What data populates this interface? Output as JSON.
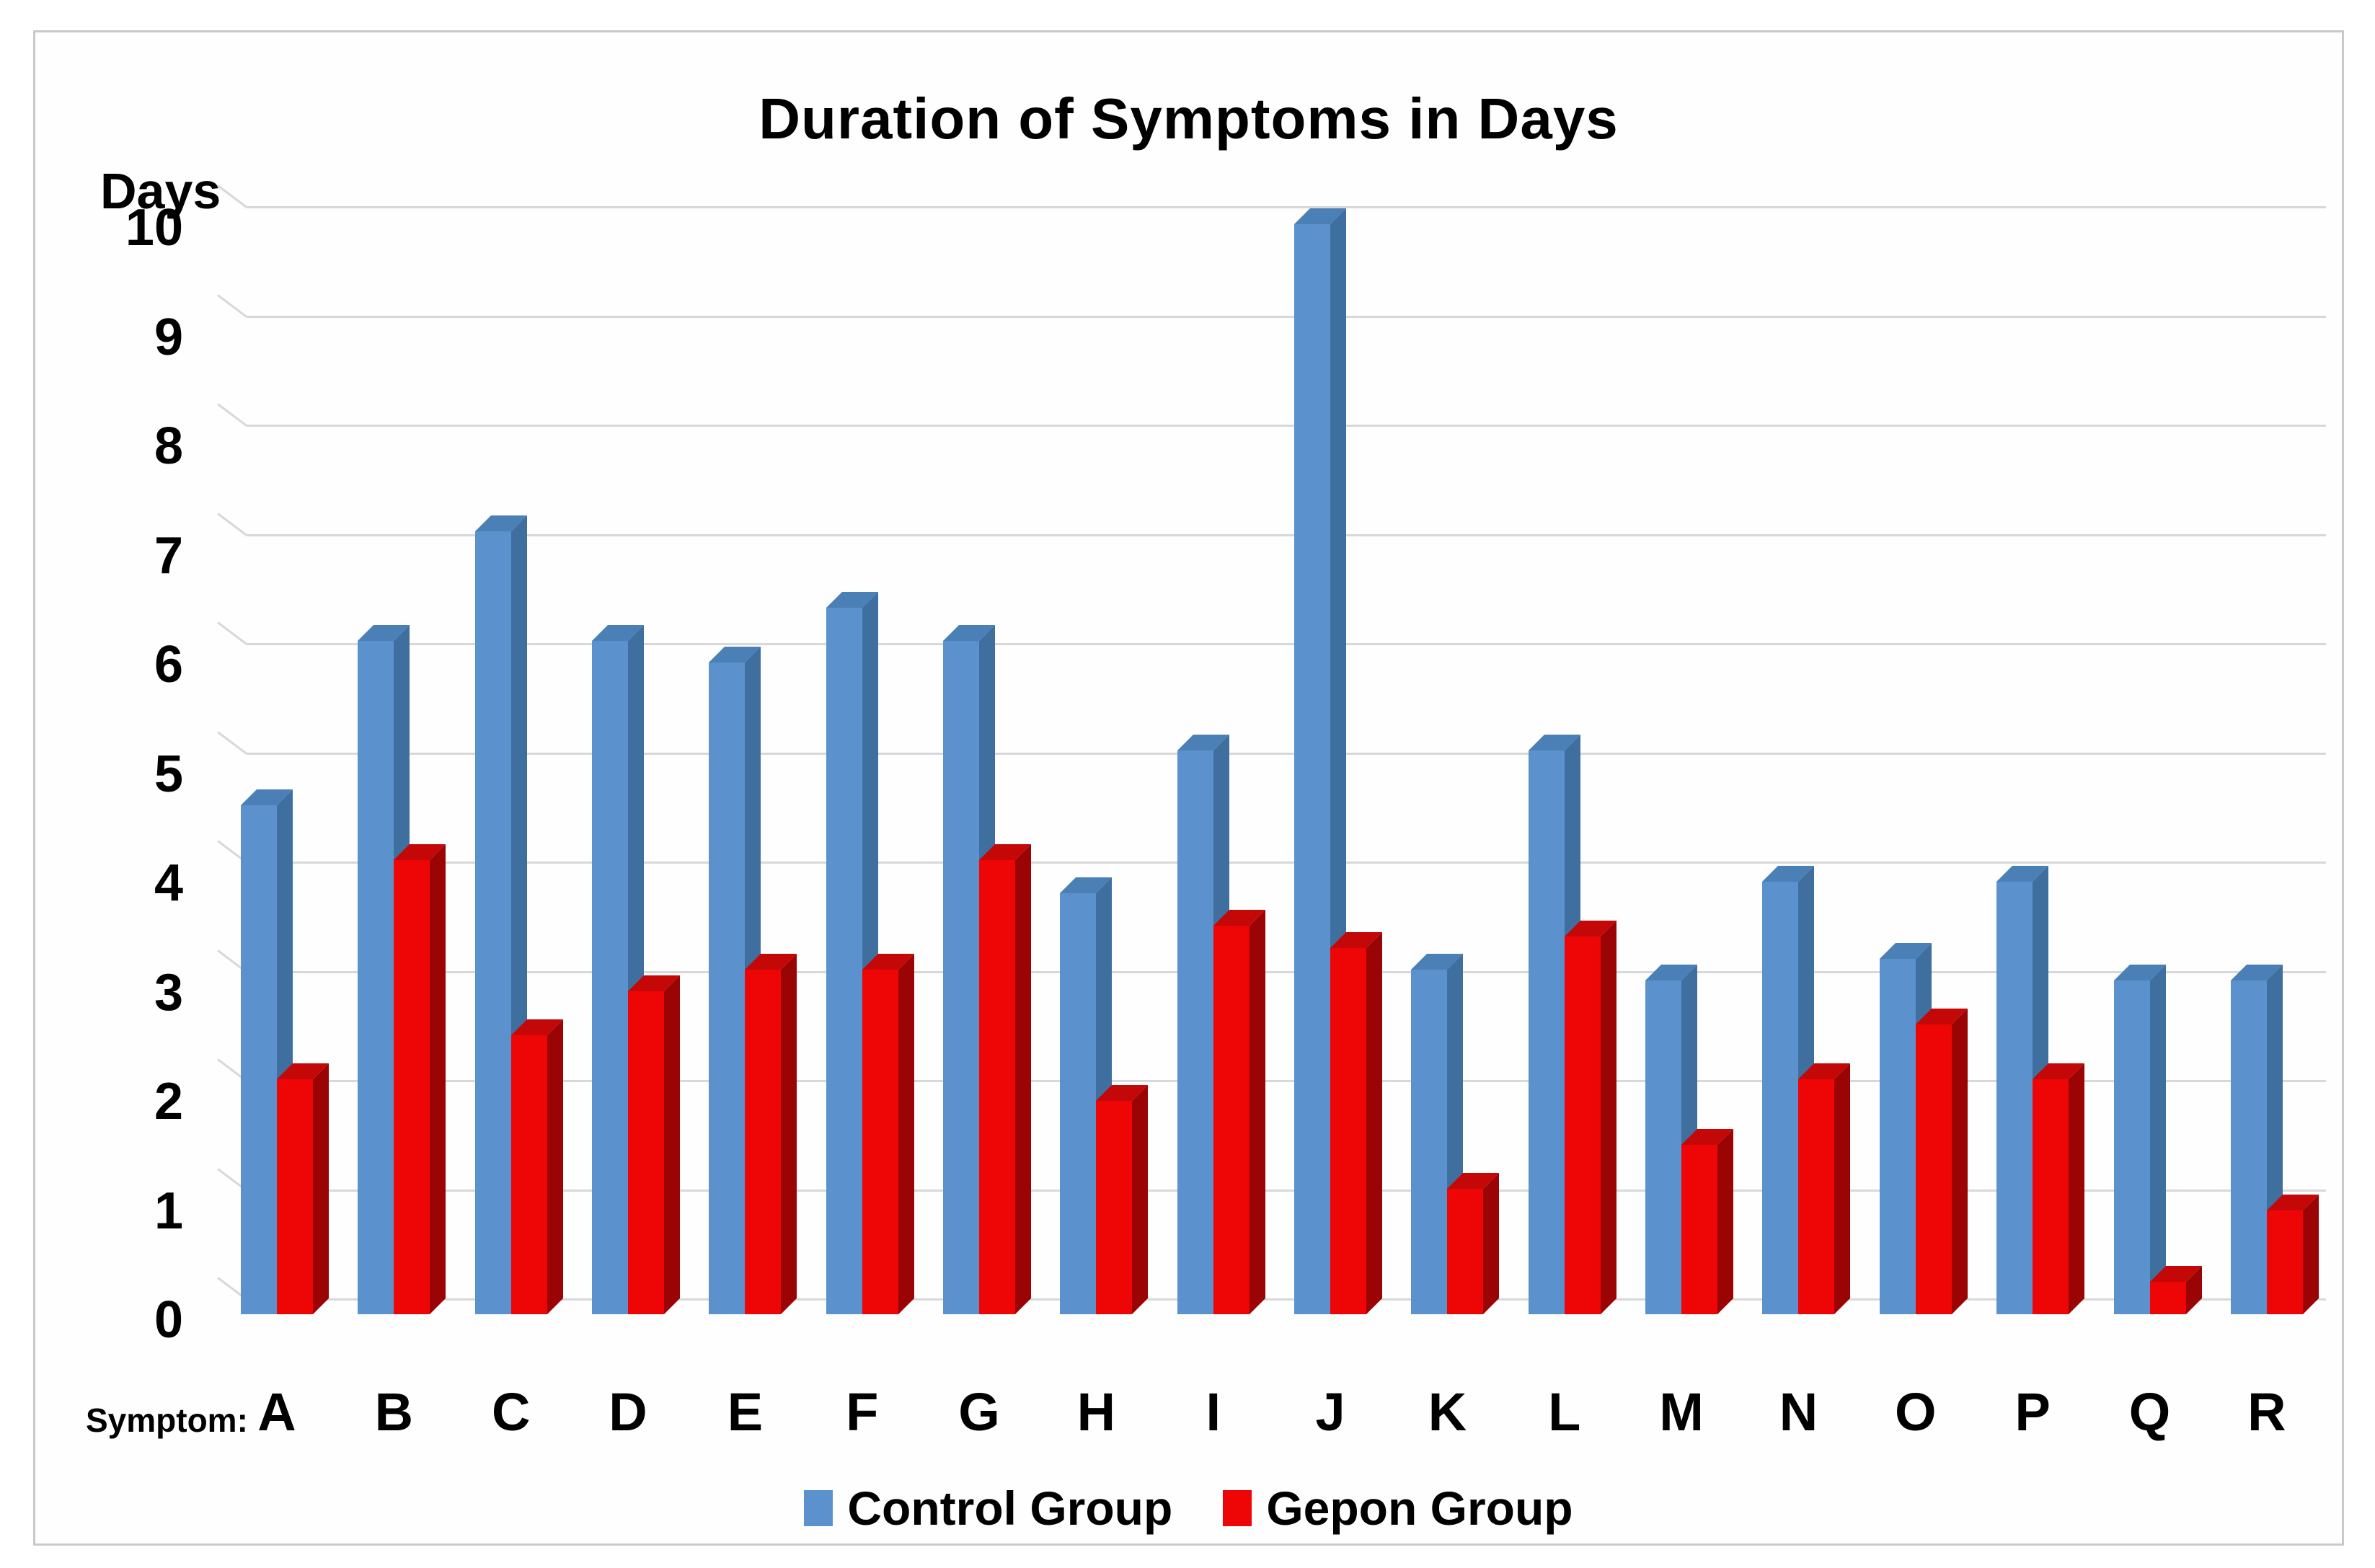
{
  "title": "Duration of Symptoms in Days",
  "y_axis": {
    "title": "Days",
    "ticks": [
      "0",
      "1",
      "2",
      "3",
      "4",
      "5",
      "6",
      "7",
      "8",
      "9",
      "10"
    ],
    "min": 0,
    "max": 10
  },
  "x_axis": {
    "title": "Symptom:",
    "categories": [
      "A",
      "B",
      "C",
      "D",
      "E",
      "F",
      "G",
      "H",
      "I",
      "J",
      "K",
      "L",
      "M",
      "N",
      "O",
      "P",
      "Q",
      "R"
    ]
  },
  "legend": {
    "items": [
      {
        "label": "Control Group",
        "color": "#5b92ce"
      },
      {
        "label": "Gepon Group",
        "color": "#ee0606"
      }
    ],
    "position": "bottom"
  },
  "colors": {
    "control_front": "#5b92ce",
    "control_top": "#4a80b6",
    "control_side": "#3f6f9f",
    "gepon_front": "#ee0606",
    "gepon_top": "#c40808",
    "gepon_side": "#9b0404",
    "gridline": "#d8d8d8",
    "frame_border": "#c9c9c9",
    "text": "#000000"
  },
  "chart_data": {
    "type": "bar",
    "style": "3d-clustered-column",
    "title": "Duration of Symptoms in Days",
    "xlabel": "Symptom",
    "ylabel": "Days",
    "ylim": [
      0,
      10
    ],
    "grid": true,
    "legend_position": "bottom",
    "categories": [
      "A",
      "B",
      "C",
      "D",
      "E",
      "F",
      "G",
      "H",
      "I",
      "J",
      "K",
      "L",
      "M",
      "N",
      "O",
      "P",
      "Q",
      "R"
    ],
    "series": [
      {
        "name": "Control Group",
        "color": "#5b92ce",
        "values": [
          4.5,
          6,
          7,
          6,
          5.8,
          6.3,
          6,
          3.7,
          5,
          9.8,
          3,
          5,
          2.9,
          3.8,
          3.1,
          3.8,
          2.9,
          2.9
        ]
      },
      {
        "name": "Gepon Group",
        "color": "#ee0606",
        "values": [
          2,
          4,
          2.4,
          2.8,
          3,
          3,
          4,
          1.8,
          3.4,
          3.2,
          1,
          3.3,
          1.4,
          2,
          2.5,
          2,
          0.15,
          0.8
        ]
      }
    ]
  }
}
